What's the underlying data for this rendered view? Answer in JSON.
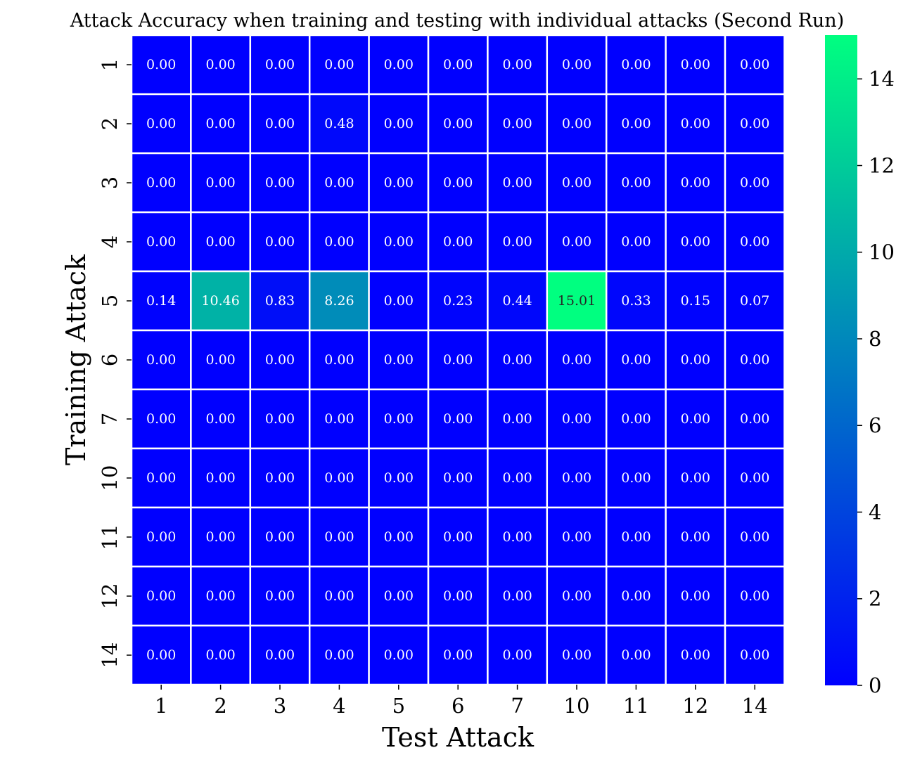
{
  "chart_data": {
    "type": "heatmap",
    "title": "Attack Accuracy when training and testing with individual attacks (Second Run)",
    "xlabel": "Test Attack",
    "ylabel": "Training Attack",
    "x_categories": [
      "1",
      "2",
      "3",
      "4",
      "5",
      "6",
      "7",
      "10",
      "11",
      "12",
      "14"
    ],
    "y_categories": [
      "1",
      "2",
      "3",
      "4",
      "5",
      "6",
      "7",
      "10",
      "11",
      "12",
      "14"
    ],
    "values": [
      [
        0.0,
        0.0,
        0.0,
        0.0,
        0.0,
        0.0,
        0.0,
        0.0,
        0.0,
        0.0,
        0.0
      ],
      [
        0.0,
        0.0,
        0.0,
        0.48,
        0.0,
        0.0,
        0.0,
        0.0,
        0.0,
        0.0,
        0.0
      ],
      [
        0.0,
        0.0,
        0.0,
        0.0,
        0.0,
        0.0,
        0.0,
        0.0,
        0.0,
        0.0,
        0.0
      ],
      [
        0.0,
        0.0,
        0.0,
        0.0,
        0.0,
        0.0,
        0.0,
        0.0,
        0.0,
        0.0,
        0.0
      ],
      [
        0.14,
        10.46,
        0.83,
        8.26,
        0.0,
        0.23,
        0.44,
        15.01,
        0.33,
        0.15,
        0.07
      ],
      [
        0.0,
        0.0,
        0.0,
        0.0,
        0.0,
        0.0,
        0.0,
        0.0,
        0.0,
        0.0,
        0.0
      ],
      [
        0.0,
        0.0,
        0.0,
        0.0,
        0.0,
        0.0,
        0.0,
        0.0,
        0.0,
        0.0,
        0.0
      ],
      [
        0.0,
        0.0,
        0.0,
        0.0,
        0.0,
        0.0,
        0.0,
        0.0,
        0.0,
        0.0,
        0.0
      ],
      [
        0.0,
        0.0,
        0.0,
        0.0,
        0.0,
        0.0,
        0.0,
        0.0,
        0.0,
        0.0,
        0.0
      ],
      [
        0.0,
        0.0,
        0.0,
        0.0,
        0.0,
        0.0,
        0.0,
        0.0,
        0.0,
        0.0,
        0.0
      ],
      [
        0.0,
        0.0,
        0.0,
        0.0,
        0.0,
        0.0,
        0.0,
        0.0,
        0.0,
        0.0,
        0.0
      ]
    ],
    "colormap": "winter",
    "color_min": "#0000ff",
    "color_max": "#00ff80",
    "cell_border_color": "#ffffff",
    "vmin": 0,
    "vmax": 15.01,
    "colorbar_ticks": [
      0,
      2,
      4,
      6,
      8,
      10,
      12,
      14
    ],
    "annotation_color_light": "#ffffff",
    "annotation_color_dark": "#262626"
  }
}
